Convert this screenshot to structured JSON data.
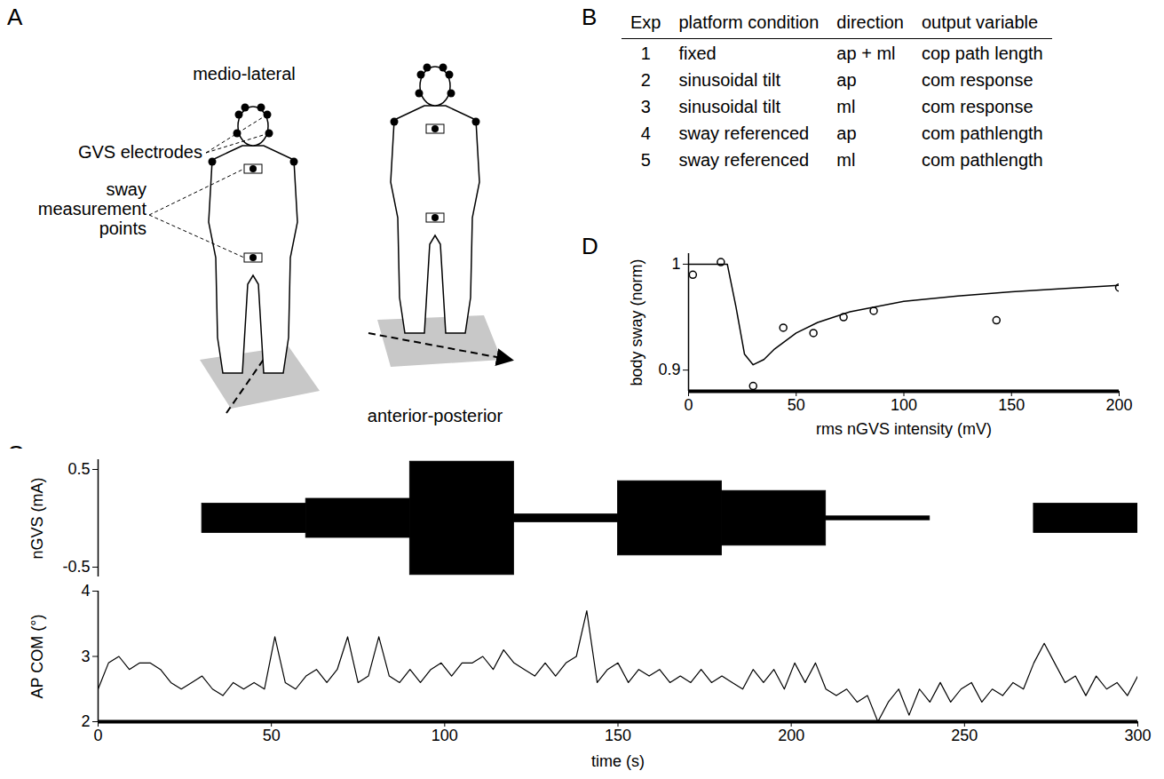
{
  "panel_labels": [
    "A",
    "B",
    "C",
    "D"
  ],
  "diagram": {
    "views": [
      "medio-lateral",
      "anterior-posterior"
    ],
    "labels": [
      "GVS electrodes",
      "sway measurement points"
    ]
  },
  "table": {
    "columns": [
      "Exp",
      "platform condition",
      "direction",
      "output variable"
    ],
    "rows": [
      [
        1,
        "fixed",
        "ap + ml",
        "cop path length"
      ],
      [
        2,
        "sinusoidal tilt",
        "ap",
        "com response"
      ],
      [
        3,
        "sinusoidal tilt",
        "ml",
        "com response"
      ],
      [
        4,
        "sway referenced",
        "ap",
        "com pathlength"
      ],
      [
        5,
        "sway referenced",
        "ml",
        "com pathlength"
      ]
    ]
  },
  "chart_data": [
    {
      "type": "envelope",
      "ylabel": "nGVS (mA)",
      "color": "#000000",
      "bins": [
        0,
        30,
        60,
        90,
        120,
        150,
        180,
        210,
        240,
        270,
        300
      ],
      "values": [
        0,
        0.15,
        0.2,
        0.58,
        0.04,
        0.38,
        0.28,
        0.02,
        0,
        0.15
      ],
      "xlim": [
        0,
        300
      ],
      "ylim": [
        -0.6,
        0.6
      ],
      "yticks": [
        -0.5,
        0.5
      ],
      "tick_labels": "y"
    },
    {
      "type": "line",
      "ylabel": "AP COM (°)",
      "xlabel": "time (s)",
      "color": "#000000",
      "x": [
        0,
        3,
        6,
        9,
        12,
        15,
        18,
        21,
        24,
        27,
        30,
        33,
        36,
        39,
        42,
        45,
        48,
        51,
        54,
        57,
        60,
        63,
        66,
        69,
        72,
        75,
        78,
        81,
        84,
        87,
        90,
        93,
        96,
        99,
        102,
        105,
        108,
        111,
        114,
        117,
        120,
        123,
        126,
        129,
        132,
        135,
        138,
        141,
        144,
        147,
        150,
        153,
        156,
        159,
        162,
        165,
        168,
        171,
        174,
        177,
        180,
        183,
        186,
        189,
        192,
        195,
        198,
        201,
        204,
        207,
        210,
        213,
        216,
        219,
        222,
        225,
        228,
        231,
        234,
        237,
        240,
        243,
        246,
        249,
        252,
        255,
        258,
        261,
        264,
        267,
        270,
        273,
        276,
        279,
        282,
        285,
        288,
        291,
        294,
        297,
        300
      ],
      "values": [
        2.5,
        2.9,
        3.0,
        2.8,
        2.9,
        2.9,
        2.8,
        2.6,
        2.5,
        2.6,
        2.7,
        2.5,
        2.4,
        2.6,
        2.5,
        2.6,
        2.5,
        3.3,
        2.6,
        2.5,
        2.7,
        2.8,
        2.6,
        2.8,
        3.3,
        2.6,
        2.7,
        3.3,
        2.7,
        2.6,
        2.8,
        2.6,
        2.8,
        2.9,
        2.7,
        2.9,
        2.9,
        3.0,
        2.8,
        3.1,
        2.9,
        2.8,
        2.7,
        2.9,
        2.7,
        2.9,
        3.0,
        3.7,
        2.6,
        2.8,
        2.9,
        2.6,
        2.8,
        2.7,
        2.8,
        2.6,
        2.7,
        2.6,
        2.8,
        2.6,
        2.7,
        2.6,
        2.5,
        2.8,
        2.6,
        2.8,
        2.5,
        2.9,
        2.6,
        2.9,
        2.5,
        2.4,
        2.5,
        2.3,
        2.4,
        2.0,
        2.3,
        2.5,
        2.1,
        2.5,
        2.3,
        2.6,
        2.3,
        2.5,
        2.6,
        2.3,
        2.5,
        2.4,
        2.6,
        2.5,
        2.9,
        3.2,
        2.9,
        2.6,
        2.7,
        2.4,
        2.7,
        2.5,
        2.6,
        2.4,
        2.7
      ],
      "xlim": [
        0,
        300
      ],
      "ylim": [
        2,
        4
      ],
      "xticks": [
        0,
        50,
        100,
        150,
        200,
        250,
        300
      ],
      "yticks": [
        2,
        3,
        4
      ]
    },
    {
      "type": "scatter",
      "ylabel": "body sway (norm)",
      "xlabel": "rms nGVS intensity (mV)",
      "series": [
        {
          "type": "scatter",
          "marker": "circle",
          "color": "#000000",
          "x": [
            2,
            15,
            30,
            44,
            58,
            72,
            86,
            143,
            200
          ],
          "values": [
            0.99,
            1.002,
            0.885,
            0.94,
            0.935,
            0.95,
            0.956,
            0.947,
            0.978
          ]
        },
        {
          "type": "line",
          "color": "#000000",
          "x": [
            0,
            10,
            18,
            22,
            26,
            30,
            35,
            40,
            50,
            60,
            75,
            100,
            125,
            150,
            175,
            200
          ],
          "values": [
            1,
            1,
            1,
            0.96,
            0.915,
            0.905,
            0.91,
            0.92,
            0.935,
            0.945,
            0.955,
            0.965,
            0.97,
            0.974,
            0.977,
            0.98
          ]
        }
      ],
      "xlim": [
        0,
        200
      ],
      "ylim": [
        0.88,
        1.01
      ],
      "xticks": [
        0,
        50,
        100,
        150,
        200
      ],
      "yticks": [
        0.9,
        1
      ]
    }
  ]
}
